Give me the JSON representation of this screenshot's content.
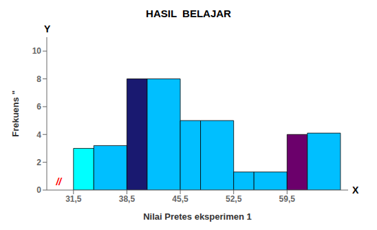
{
  "chart_data": {
    "type": "bar",
    "title": "HASIL  BELAJAR",
    "xlabel": "Nilai Pretes eksperimen 1",
    "ylabel": "Frekuens  \"",
    "bins": [
      31.5,
      38.5,
      45.5,
      52.5,
      59.5,
      66.5
    ],
    "series": [
      {
        "colors": [
          "#00FFFF",
          "#191970",
          "#00BFFF",
          "#00BFFF",
          "#6B006B"
        ],
        "values": [
          3.0,
          8.0,
          5.0,
          1.3,
          4.0
        ]
      },
      {
        "colors": [
          "#00BFFF",
          "#00BFFF",
          "#00BFFF",
          "#00BFFF",
          "#00BFFF"
        ],
        "values": [
          3.2,
          8.0,
          5.0,
          1.3,
          4.1
        ]
      }
    ],
    "xlim": [
      28.0,
      67.5
    ],
    "ylim": [
      0,
      11.0
    ],
    "xticks": [
      {
        "value": 31.5,
        "label": "31,5"
      },
      {
        "value": 38.5,
        "label": "38,5"
      },
      {
        "value": 45.5,
        "label": "45,5"
      },
      {
        "value": 52.5,
        "label": "52,5"
      },
      {
        "value": 59.5,
        "label": "59,5"
      }
    ],
    "yticks": [
      0,
      2,
      4,
      6,
      8,
      10
    ],
    "annotations": [
      {
        "text": "Y"
      },
      {
        "text": "X"
      },
      {
        "text": "//",
        "color": "red"
      }
    ]
  }
}
